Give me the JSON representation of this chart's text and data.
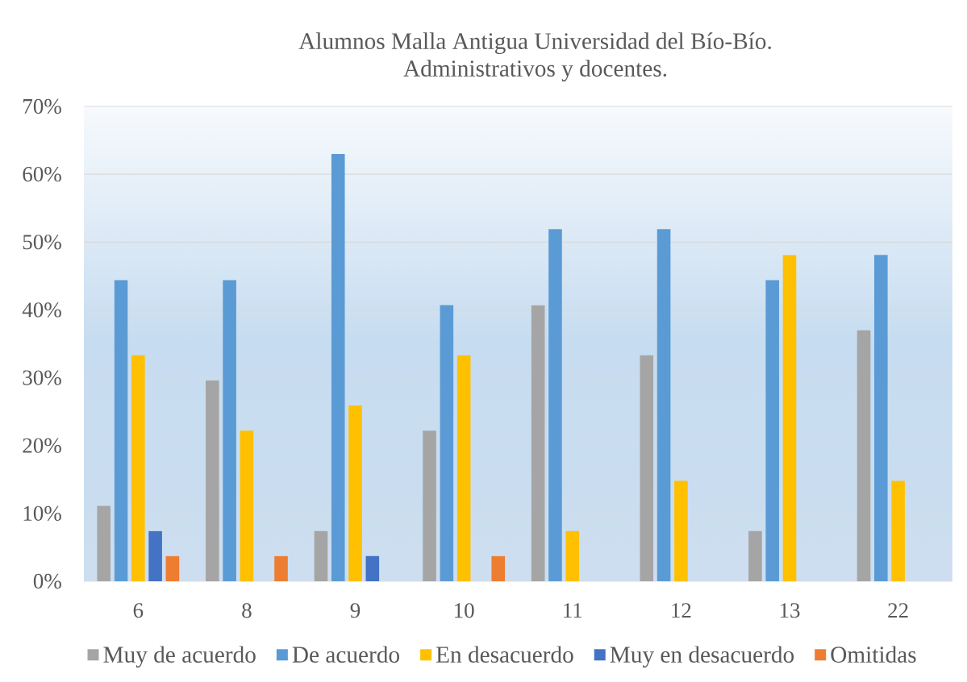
{
  "chart_data": {
    "type": "bar",
    "title": "Alumnos Malla Antigua Universidad del Bío-Bío.",
    "subtitle": "Administrativos y docentes.",
    "categories": [
      "6",
      "8",
      "9",
      "10",
      "11",
      "12",
      "13",
      "22"
    ],
    "series": [
      {
        "name": "Muy de acuerdo",
        "color": "#a5a5a5",
        "values": [
          11.1,
          29.6,
          7.4,
          22.2,
          40.7,
          33.3,
          7.4,
          37.0
        ]
      },
      {
        "name": "De acuerdo",
        "color": "#5b9bd5",
        "values": [
          44.4,
          44.4,
          63.0,
          40.7,
          51.9,
          51.9,
          44.4,
          48.1
        ]
      },
      {
        "name": "En desacuerdo",
        "color": "#ffc000",
        "values": [
          33.3,
          22.2,
          25.9,
          33.3,
          7.4,
          14.8,
          48.1,
          14.8
        ]
      },
      {
        "name": "Muy en desacuerdo",
        "color": "#4472c4",
        "values": [
          7.4,
          null,
          3.7,
          null,
          null,
          null,
          null,
          null
        ]
      },
      {
        "name": "Omitidas",
        "color": "#ed7d31",
        "values": [
          3.7,
          3.7,
          null,
          3.7,
          null,
          null,
          null,
          null
        ]
      }
    ],
    "ylim": [
      0,
      70
    ],
    "yticks": [
      {
        "value": 0,
        "label": "0%"
      },
      {
        "value": 10,
        "label": "10%"
      },
      {
        "value": 20,
        "label": "20%"
      },
      {
        "value": 30,
        "label": "30%"
      },
      {
        "value": 40,
        "label": "40%"
      },
      {
        "value": 50,
        "label": "50%"
      },
      {
        "value": 60,
        "label": "60%"
      },
      {
        "value": 70,
        "label": "70%"
      }
    ],
    "grid": "y",
    "legend": "bottom"
  }
}
